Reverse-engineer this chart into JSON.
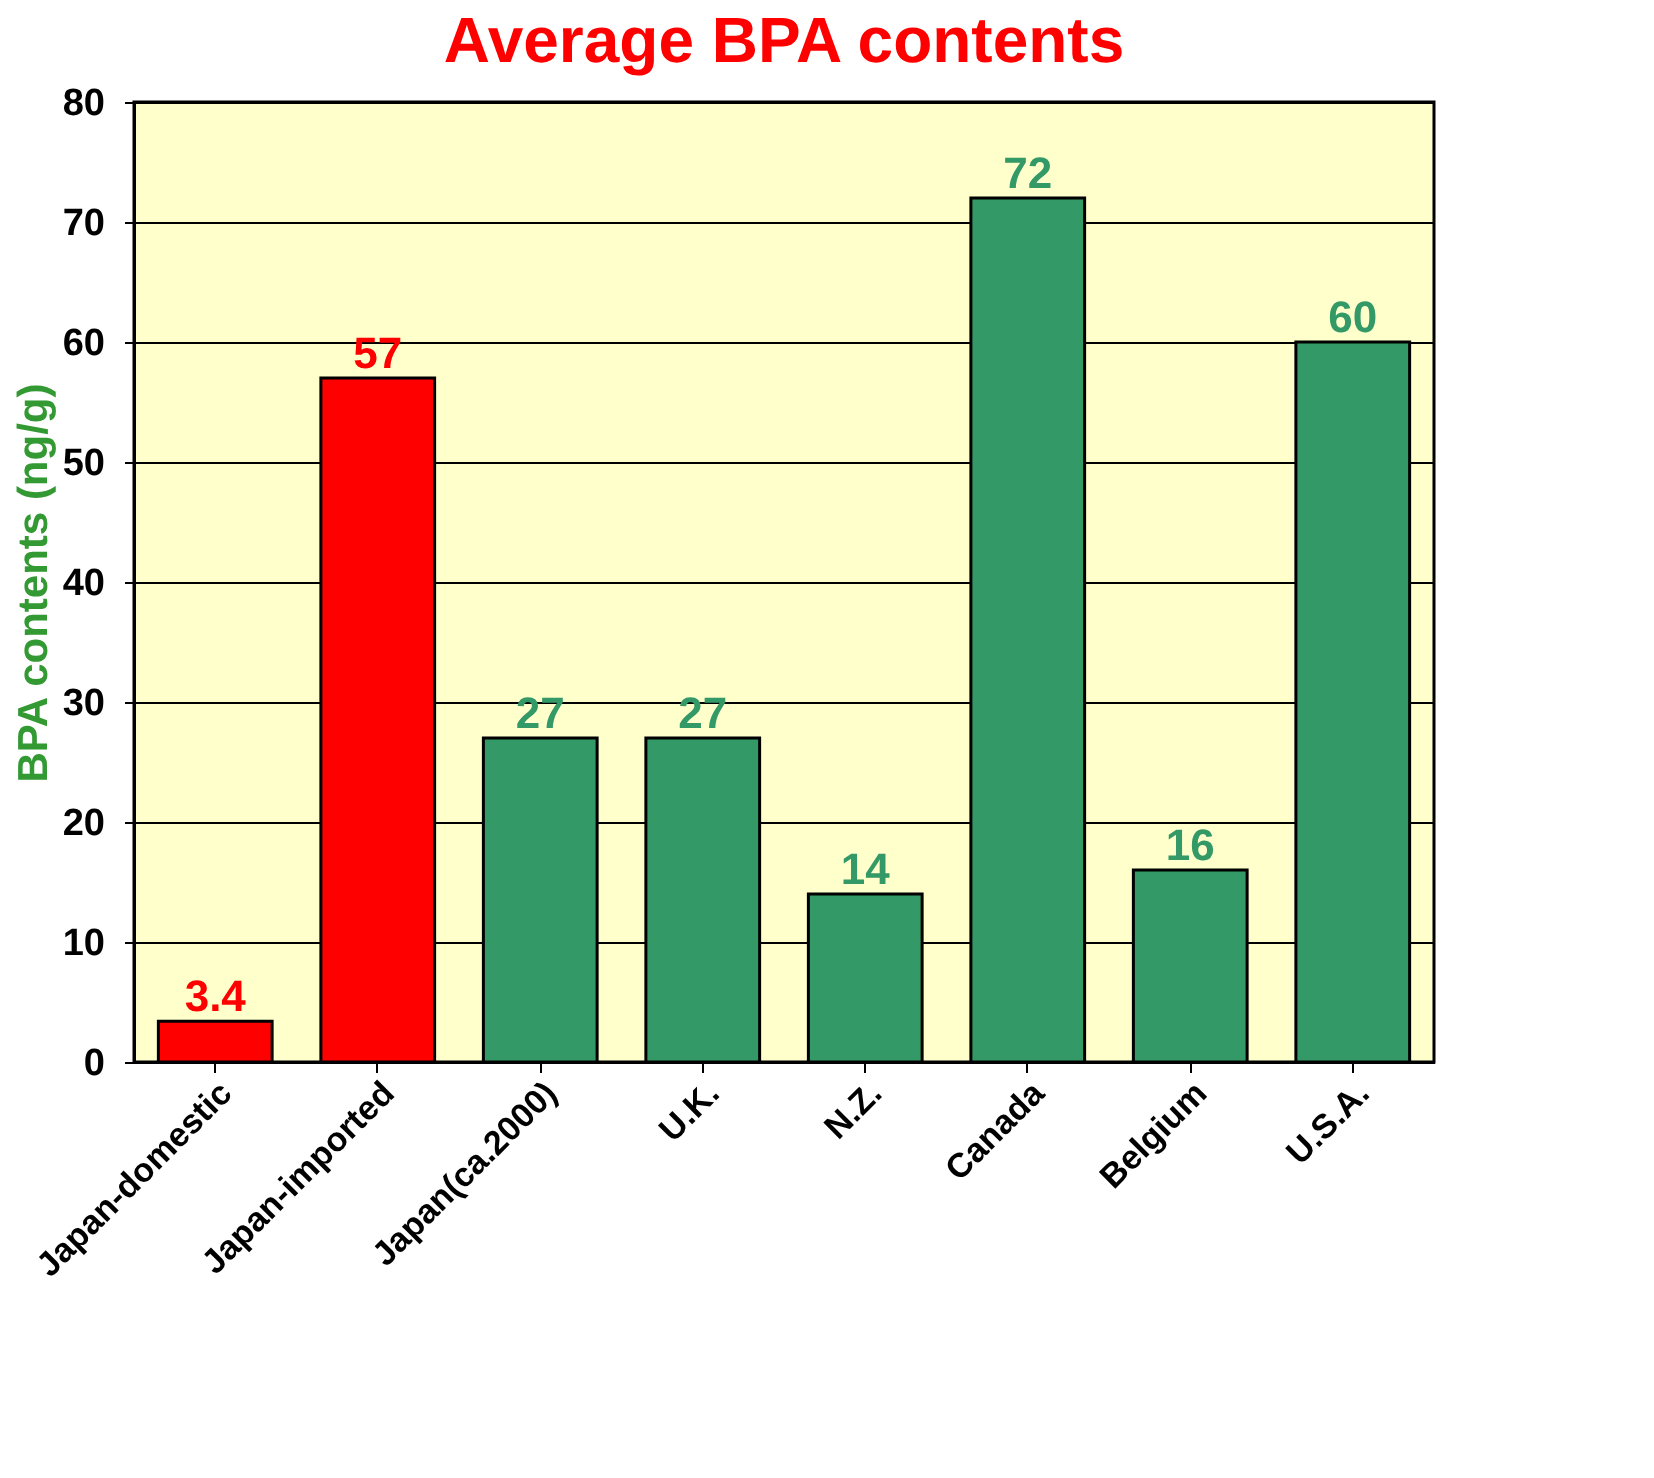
{
  "chart_data": {
    "type": "bar",
    "title": "Average BPA contents",
    "ylabel": "BPA contents (ng/g)",
    "categories": [
      "Japan-domestic",
      "Japan-imported",
      "Japan(ca.2000)",
      "U.K.",
      "N.Z.",
      "Canada",
      "Belgium",
      "U.S.A."
    ],
    "values": [
      3.4,
      57,
      27,
      27,
      14,
      72,
      16,
      60
    ],
    "colors": [
      "#ff0000",
      "#ff0000",
      "#339966",
      "#339966",
      "#339966",
      "#339966",
      "#339966",
      "#339966"
    ],
    "ylim": [
      0,
      80
    ],
    "yticks": [
      0,
      10,
      20,
      30,
      40,
      50,
      60,
      70,
      80
    ],
    "grid": "y",
    "data_labels": true
  }
}
